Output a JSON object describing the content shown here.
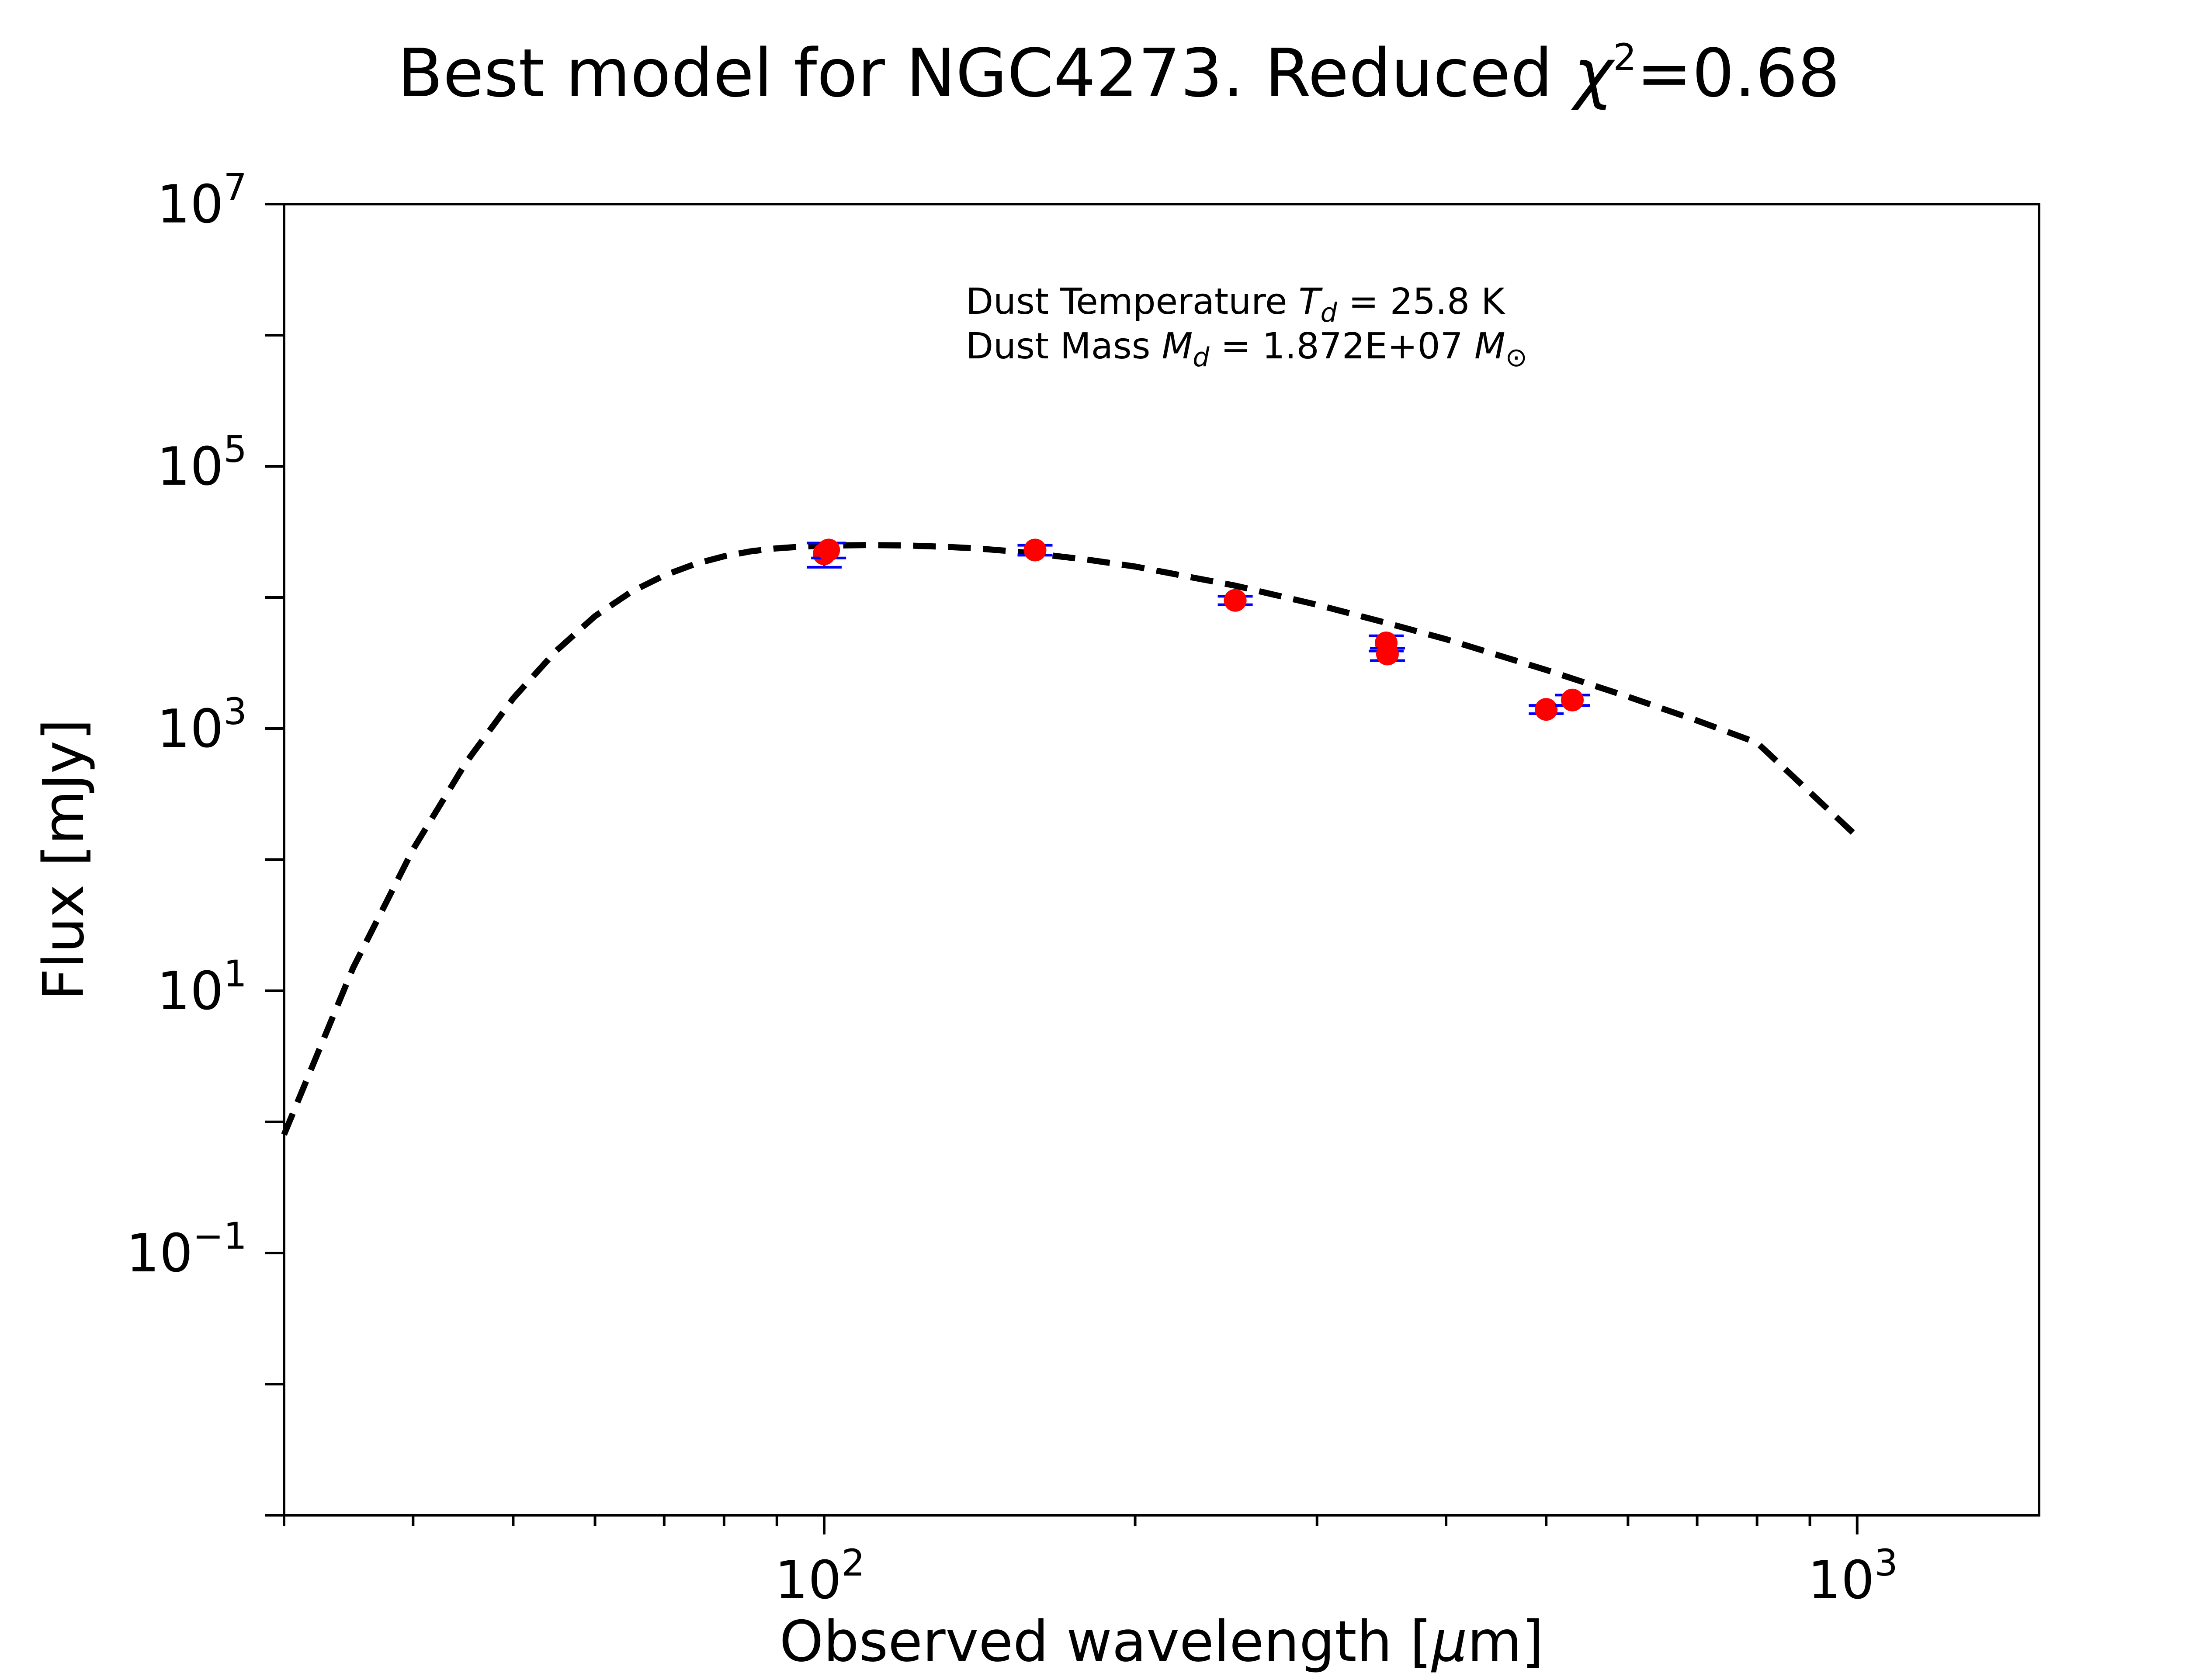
{
  "chart_data": {
    "type": "scatter",
    "title": {
      "prefix": "Best model for NGC4273. Reduced ",
      "chi_symbol": "χ",
      "chi_exp": "2",
      "suffix": "=0.68"
    },
    "xlabel": {
      "text": "Observed wavelength [",
      "mu": "μ",
      "unit": "m]"
    },
    "ylabel": "Flux [mJy]",
    "xscale": "log",
    "yscale": "log",
    "xlim": [
      30,
      1500
    ],
    "ylim": [
      0.001,
      10000000
    ],
    "x_ticks": [
      {
        "value": 100,
        "base": "10",
        "exp": "2"
      },
      {
        "value": 1000,
        "base": "10",
        "exp": "3"
      }
    ],
    "y_ticks": [
      {
        "value": 0.1,
        "base": "10",
        "exp": "−1"
      },
      {
        "value": 10,
        "base": "10",
        "exp": "1"
      },
      {
        "value": 1000,
        "base": "10",
        "exp": "3"
      },
      {
        "value": 100000,
        "base": "10",
        "exp": "5"
      },
      {
        "value": 10000000,
        "base": "10",
        "exp": "7"
      }
    ],
    "annotations": {
      "temperature": {
        "prefix": "Dust Temperature ",
        "sym": "T",
        "sub": "d",
        "suffix": " = 25.8 K"
      },
      "mass": {
        "prefix": "Dust Mass ",
        "sym": "M",
        "sub": "d",
        "mid": " = 1.872E+07 ",
        "sym2": "M",
        "sub2": "⊙"
      }
    },
    "series": [
      {
        "type": "dashed-line",
        "color": "#000000",
        "x": [
          30,
          35,
          40,
          45,
          50,
          55,
          60,
          65,
          70,
          75,
          80,
          85,
          90,
          95,
          100,
          110,
          120,
          130,
          140,
          150,
          160,
          180,
          200,
          250,
          300,
          350,
          400,
          500,
          600,
          700,
          800,
          1000
        ],
        "y": [
          0.8,
          15,
          120,
          550,
          1700,
          3900,
          7200,
          11000,
          14700,
          18000,
          20600,
          22500,
          23700,
          24400,
          24800,
          25100,
          24900,
          24400,
          23700,
          22700,
          21600,
          19400,
          17200,
          12300,
          8800,
          6400,
          4800,
          2800,
          1750,
          1150,
          780,
          150
        ]
      },
      {
        "type": "points",
        "color": "#ff0000",
        "error_color": "#0000ff",
        "x": [
          100,
          101,
          160,
          250,
          350,
          351,
          500,
          530
        ],
        "y": [
          21500,
          23000,
          23000,
          9500,
          4500,
          3700,
          1400,
          1650
        ],
        "yerr_low": [
          17000,
          20000,
          21000,
          8800,
          3900,
          3300,
          1300,
          1500
        ],
        "yerr_high": [
          26000,
          26000,
          25000,
          10200,
          5100,
          4100,
          1500,
          1800
        ]
      }
    ]
  }
}
